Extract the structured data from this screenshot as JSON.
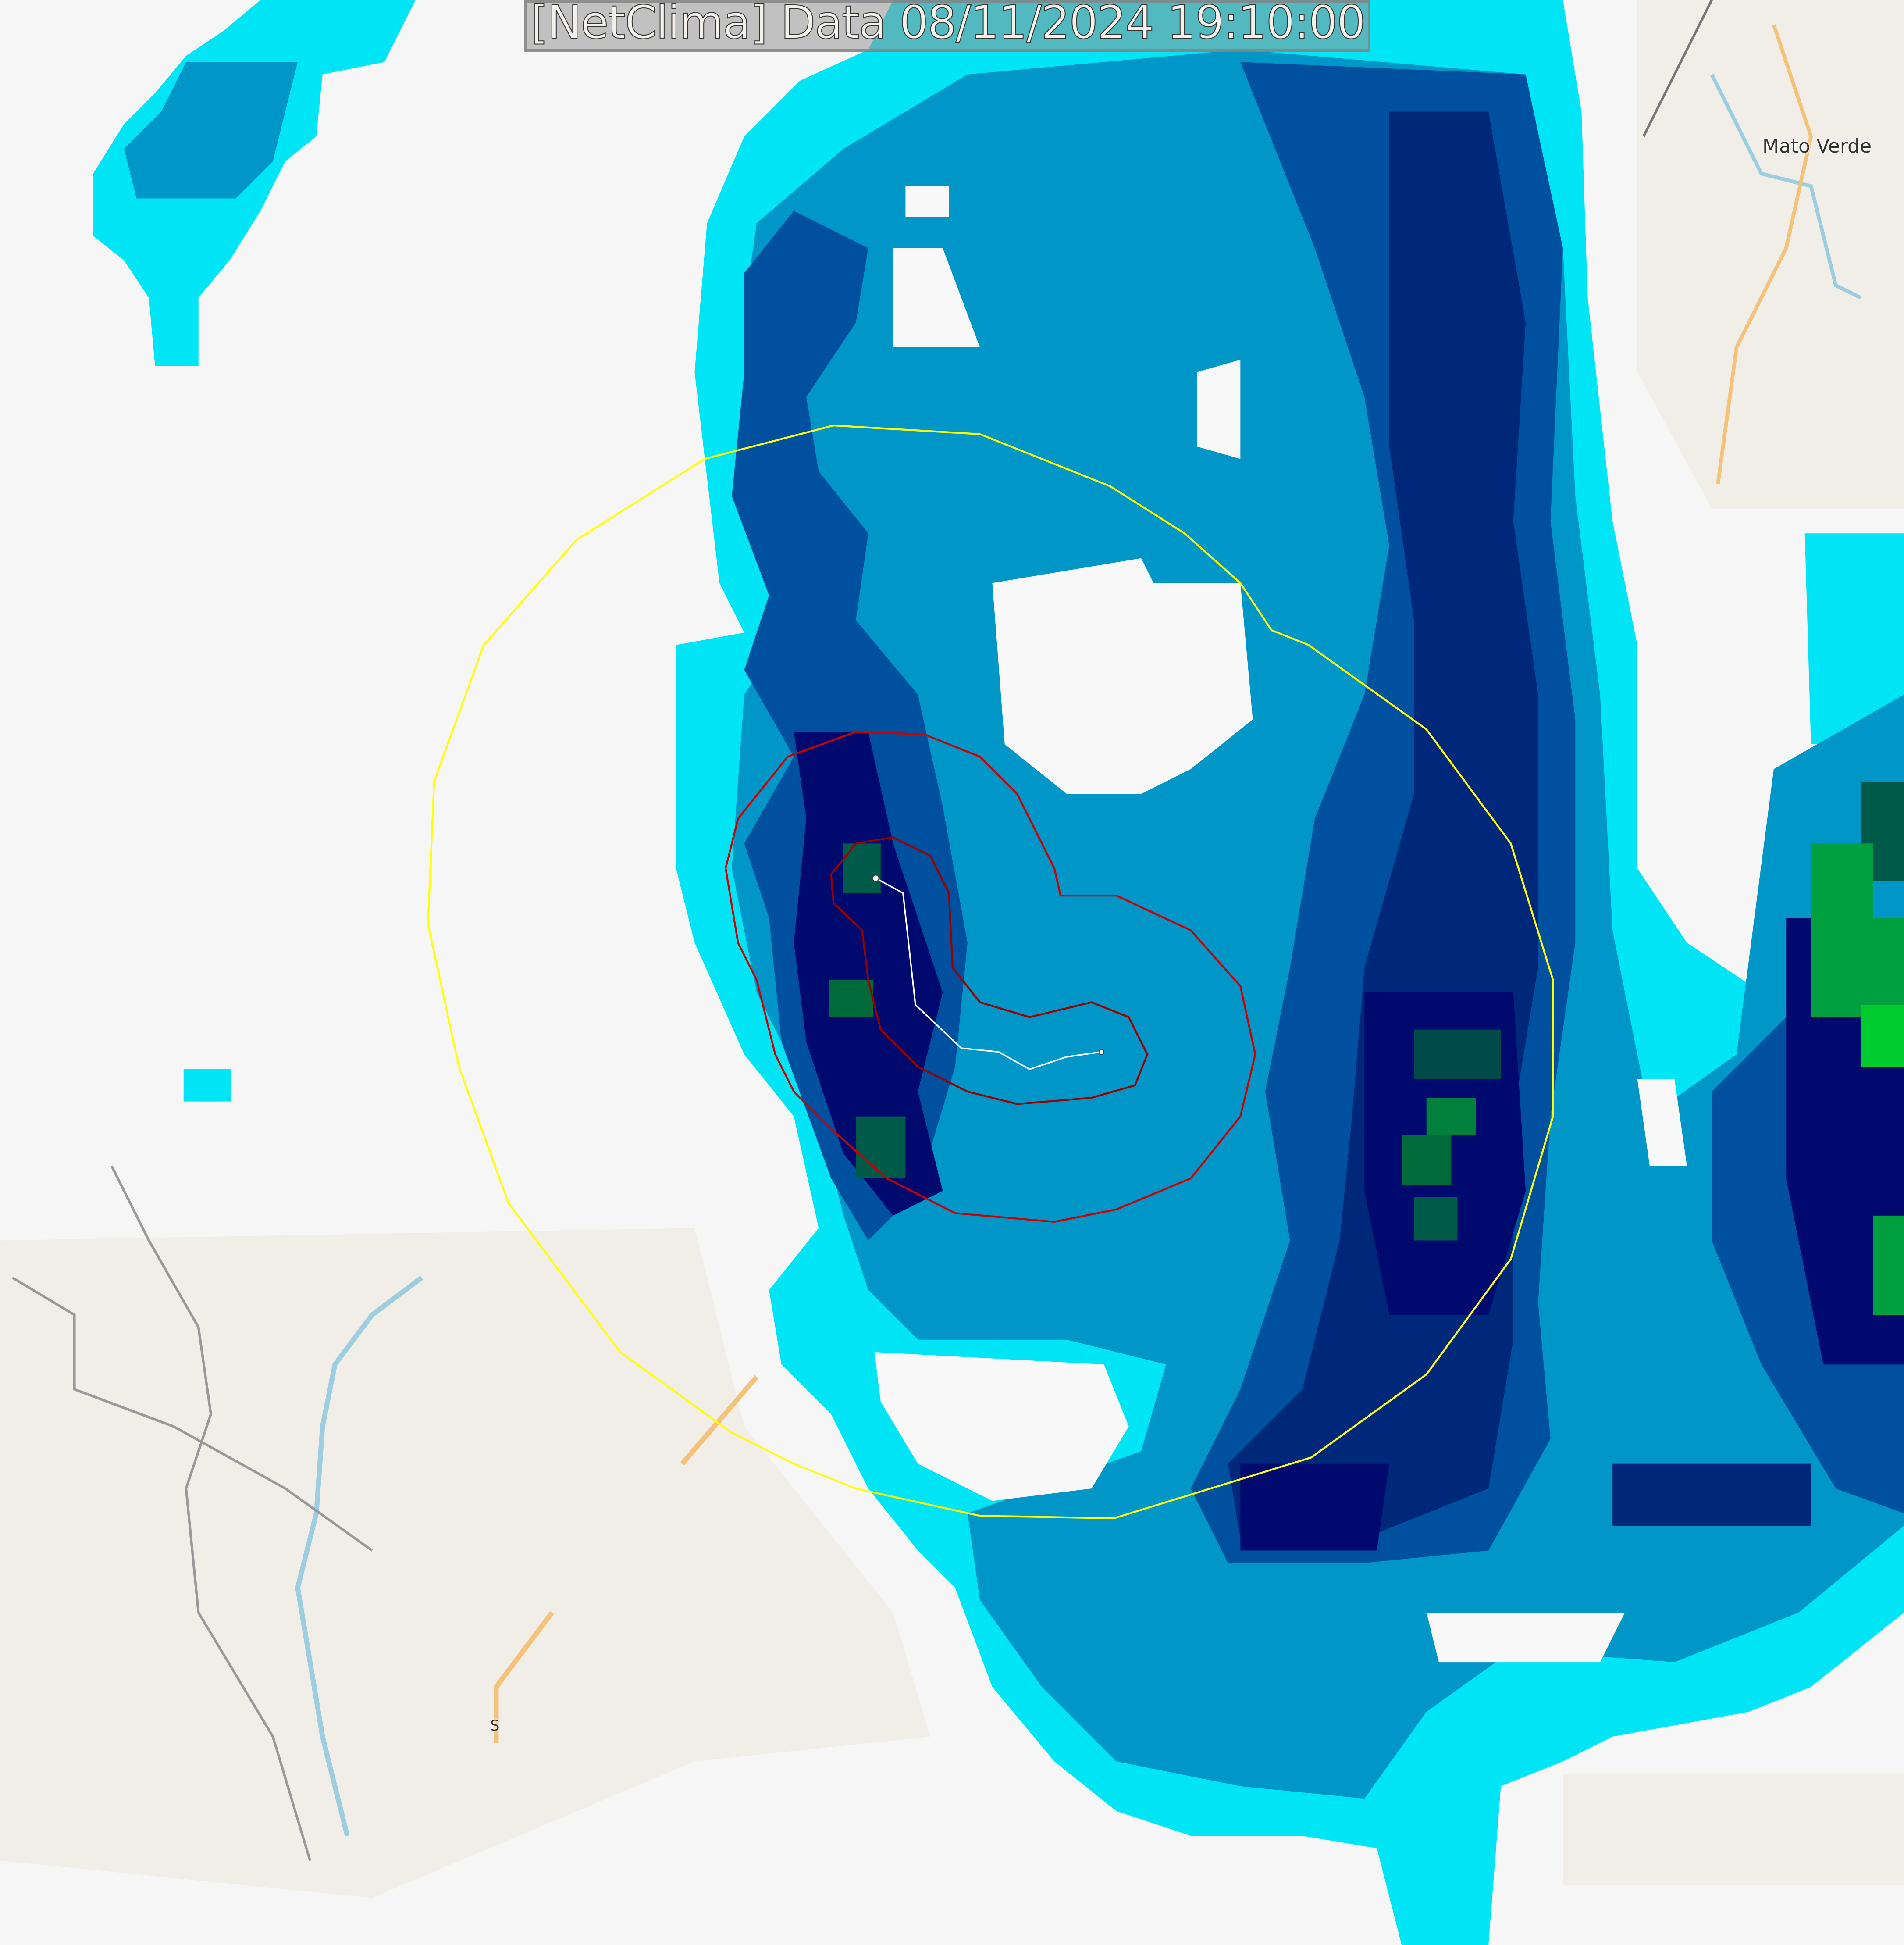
{
  "header": {
    "title": "[NetClima] Data 08/11/2024 19:10:00"
  },
  "map": {
    "labels": [
      {
        "text": "Mato Verde"
      },
      {
        "text": "S"
      }
    ],
    "colors": {
      "background": "#f6f6f6",
      "land": "#f1eee8",
      "road": "#f5c27a",
      "river": "#9ccde0",
      "radar_light": "#00e5f5",
      "radar_mid": "#0096c8",
      "radar_strong": "#0050a0",
      "radar_intense": "#000a6e",
      "radar_green": "#00a040",
      "contour_outer": "#ffff00",
      "contour_inner": "#cc0000",
      "track": "#ffffff"
    }
  }
}
